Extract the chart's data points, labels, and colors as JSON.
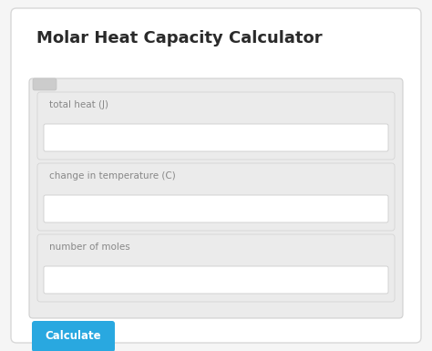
{
  "title": "Molar Heat Capacity Calculator",
  "title_fontsize": 13,
  "title_color": "#2a2a2a",
  "title_fontweight": "bold",
  "background_color": "#f5f5f5",
  "outer_card_color": "#ffffff",
  "outer_card_edge": "#d8d8d8",
  "inner_panel_color": "#ebebeb",
  "inner_panel_edge": "#d0d0d0",
  "input_box_color": "#ffffff",
  "input_box_edge": "#cccccc",
  "fields": [
    "total heat (J)",
    "change in temperature (C)",
    "number of moles"
  ],
  "field_label_color": "#888888",
  "field_label_fontsize": 7.5,
  "button_text": "Calculate",
  "button_color": "#29a8e0",
  "button_text_color": "#ffffff",
  "button_fontsize": 8.5,
  "small_toggle_color": "#cccccc",
  "fig_width": 4.74,
  "fig_height": 3.85,
  "dpi": 100
}
